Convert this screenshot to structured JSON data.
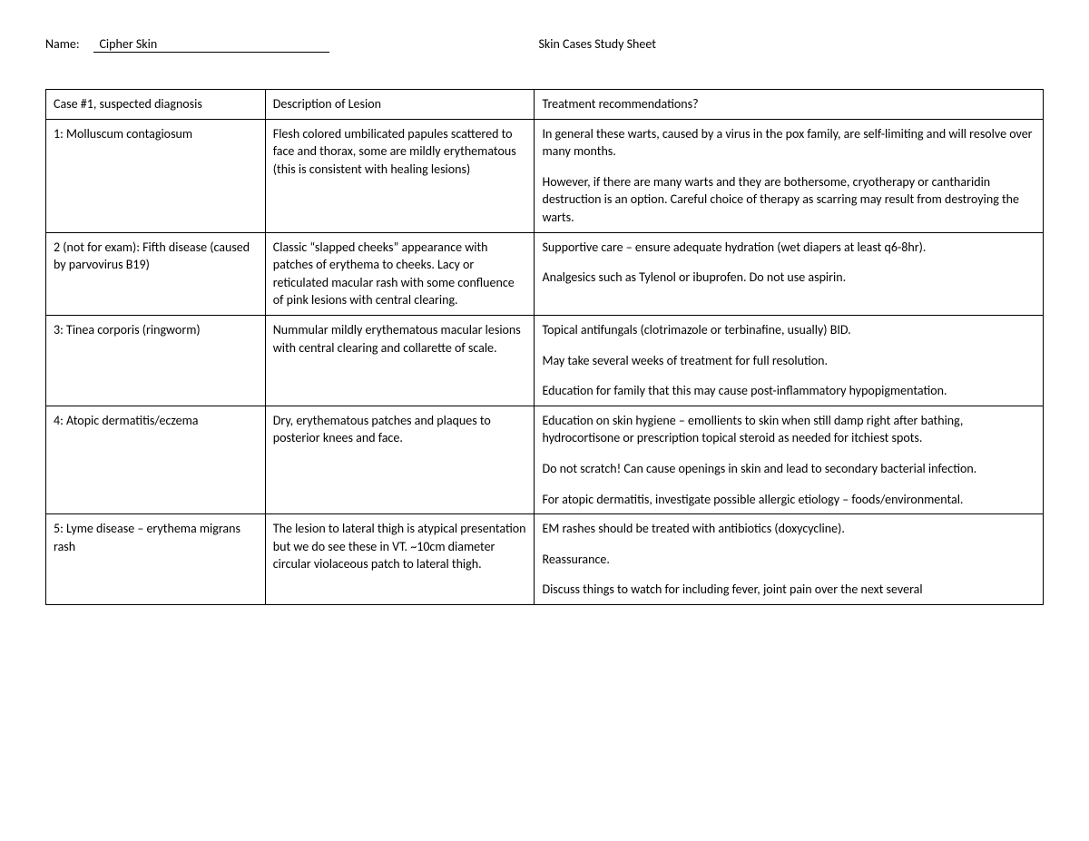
{
  "header": {
    "name_label": "Name:",
    "name_value": "Cipher Skin",
    "page_title": "Skin Cases Study Sheet"
  },
  "table": {
    "headers": {
      "case": "Case #1, suspected diagnosis",
      "description": "Description of Lesion",
      "treatment": "Treatment recommendations?"
    },
    "rows": [
      {
        "case": "1: Molluscum contagiosum",
        "description": [
          "Flesh colored umbilicated papules scattered to face and thorax, some are mildly erythematous (this is consistent with healing lesions)"
        ],
        "treatment": [
          "In general these warts, caused by a virus in the pox family, are self-limiting and will resolve over many months.",
          "However, if there are many warts and they are bothersome, cryotherapy or cantharidin destruction is an option. Careful choice of therapy as scarring may result from destroying the warts."
        ]
      },
      {
        "case": "2 (not for exam): Fifth disease (caused by parvovirus B19)",
        "description": [
          "Classic “slapped cheeks” appearance with patches of erythema to cheeks. Lacy or reticulated macular rash with some confluence of pink lesions with central clearing."
        ],
        "treatment": [
          "Supportive care – ensure adequate hydration (wet diapers at least q6-8hr).",
          "Analgesics such as Tylenol or ibuprofen. Do not use aspirin."
        ]
      },
      {
        "case": "3: Tinea corporis (ringworm)",
        "description": [
          "Nummular mildly erythematous macular lesions with central clearing and collarette of scale."
        ],
        "treatment": [
          "Topical antifungals (clotrimazole or terbinafine, usually) BID.",
          "May take several weeks of treatment for full resolution.",
          "Education for family that this may cause post-inflammatory hypopigmentation."
        ]
      },
      {
        "case": "4: Atopic dermatitis/eczema",
        "description": [
          "Dry, erythematous patches and plaques to posterior knees and face."
        ],
        "treatment": [
          "Education on skin hygiene – emollients to skin when still damp right after bathing, hydrocortisone or prescription topical steroid as needed for itchiest spots.",
          "Do not scratch! Can cause openings in skin and lead to secondary bacterial infection.",
          "For atopic dermatitis, investigate possible allergic etiology – foods/environmental."
        ]
      },
      {
        "case": "5: Lyme disease – erythema migrans rash",
        "description": [
          "The lesion to lateral thigh is atypical presentation but we do see these in VT. ~10cm diameter circular violaceous patch to lateral thigh."
        ],
        "treatment": [
          "EM rashes should be treated with antibiotics (doxycycline).",
          "Reassurance.",
          "Discuss things to watch for including fever, joint pain over the next several"
        ]
      }
    ]
  }
}
